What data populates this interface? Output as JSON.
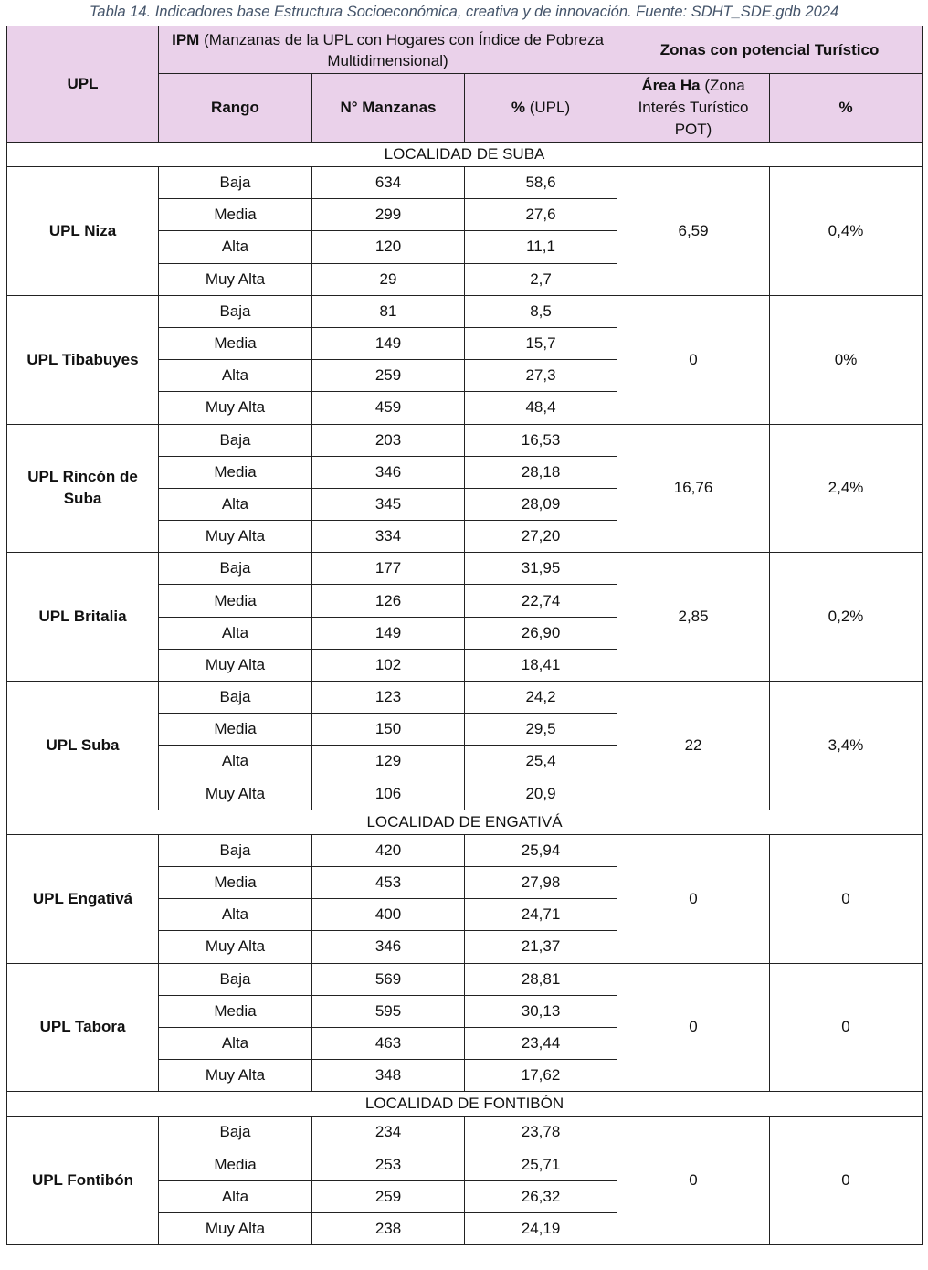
{
  "caption": "Tabla 14. Indicadores base Estructura Socioeconómica, creativa y de innovación. Fuente: SDHT_SDE.gdb 2024",
  "header": {
    "upl": "UPL",
    "ipm_bold": "IPM",
    "ipm_text": "(Manzanas de la UPL con Hogares con Índice de Pobreza Multidimensional)",
    "zonas": "Zonas con potencial Turístico",
    "rango": "Rango",
    "manzanas": "N° Manzanas",
    "pct_bold": "%",
    "pct_text": "(UPL)",
    "area_bold": "Área Ha",
    "area_text": "(Zona Interés Turístico POT)",
    "pct2": "%"
  },
  "sections": [
    {
      "locality": "LOCALIDAD DE SUBA",
      "upls": [
        {
          "name": "UPL Niza",
          "area": "6,59",
          "pct": "0,4%",
          "rows": [
            [
              "Baja",
              "634",
              "58,6"
            ],
            [
              "Media",
              "299",
              "27,6"
            ],
            [
              "Alta",
              "120",
              "11,1"
            ],
            [
              "Muy Alta",
              "29",
              "2,7"
            ]
          ]
        },
        {
          "name": "UPL Tibabuyes",
          "area": "0",
          "pct": "0%",
          "rows": [
            [
              "Baja",
              "81",
              "8,5"
            ],
            [
              "Media",
              "149",
              "15,7"
            ],
            [
              "Alta",
              "259",
              "27,3"
            ],
            [
              "Muy Alta",
              "459",
              "48,4"
            ]
          ]
        },
        {
          "name": "UPL Rincón de Suba",
          "area": "16,76",
          "pct": "2,4%",
          "rows": [
            [
              "Baja",
              "203",
              "16,53"
            ],
            [
              "Media",
              "346",
              "28,18"
            ],
            [
              "Alta",
              "345",
              "28,09"
            ],
            [
              "Muy Alta",
              "334",
              "27,20"
            ]
          ]
        },
        {
          "name": "UPL Britalia",
          "area": "2,85",
          "pct": "0,2%",
          "rows": [
            [
              "Baja",
              "177",
              "31,95"
            ],
            [
              "Media",
              "126",
              "22,74"
            ],
            [
              "Alta",
              "149",
              "26,90"
            ],
            [
              "Muy Alta",
              "102",
              "18,41"
            ]
          ]
        },
        {
          "name": "UPL Suba",
          "area": "22",
          "pct": "3,4%",
          "rows": [
            [
              "Baja",
              "123",
              "24,2"
            ],
            [
              "Media",
              "150",
              "29,5"
            ],
            [
              "Alta",
              "129",
              "25,4"
            ],
            [
              "Muy Alta",
              "106",
              "20,9"
            ]
          ]
        }
      ]
    },
    {
      "locality": "LOCALIDAD DE ENGATIVÁ",
      "upls": [
        {
          "name": "UPL Engativá",
          "area": "0",
          "pct": "0",
          "rows": [
            [
              "Baja",
              "420",
              "25,94"
            ],
            [
              "Media",
              "453",
              "27,98"
            ],
            [
              "Alta",
              "400",
              "24,71"
            ],
            [
              "Muy Alta",
              "346",
              "21,37"
            ]
          ]
        },
        {
          "name": "UPL Tabora",
          "area": "0",
          "pct": "0",
          "rows": [
            [
              "Baja",
              "569",
              "28,81"
            ],
            [
              "Media",
              "595",
              "30,13"
            ],
            [
              "Alta",
              "463",
              "23,44"
            ],
            [
              "Muy Alta",
              "348",
              "17,62"
            ]
          ]
        }
      ]
    },
    {
      "locality": "LOCALIDAD DE FONTIBÓN",
      "upls": [
        {
          "name": "UPL Fontibón",
          "area": "0",
          "pct": "0",
          "rows": [
            [
              "Baja",
              "234",
              "23,78"
            ],
            [
              "Media",
              "253",
              "25,71"
            ],
            [
              "Alta",
              "259",
              "26,32"
            ],
            [
              "Muy Alta",
              "238",
              "24,19"
            ]
          ]
        }
      ]
    }
  ]
}
